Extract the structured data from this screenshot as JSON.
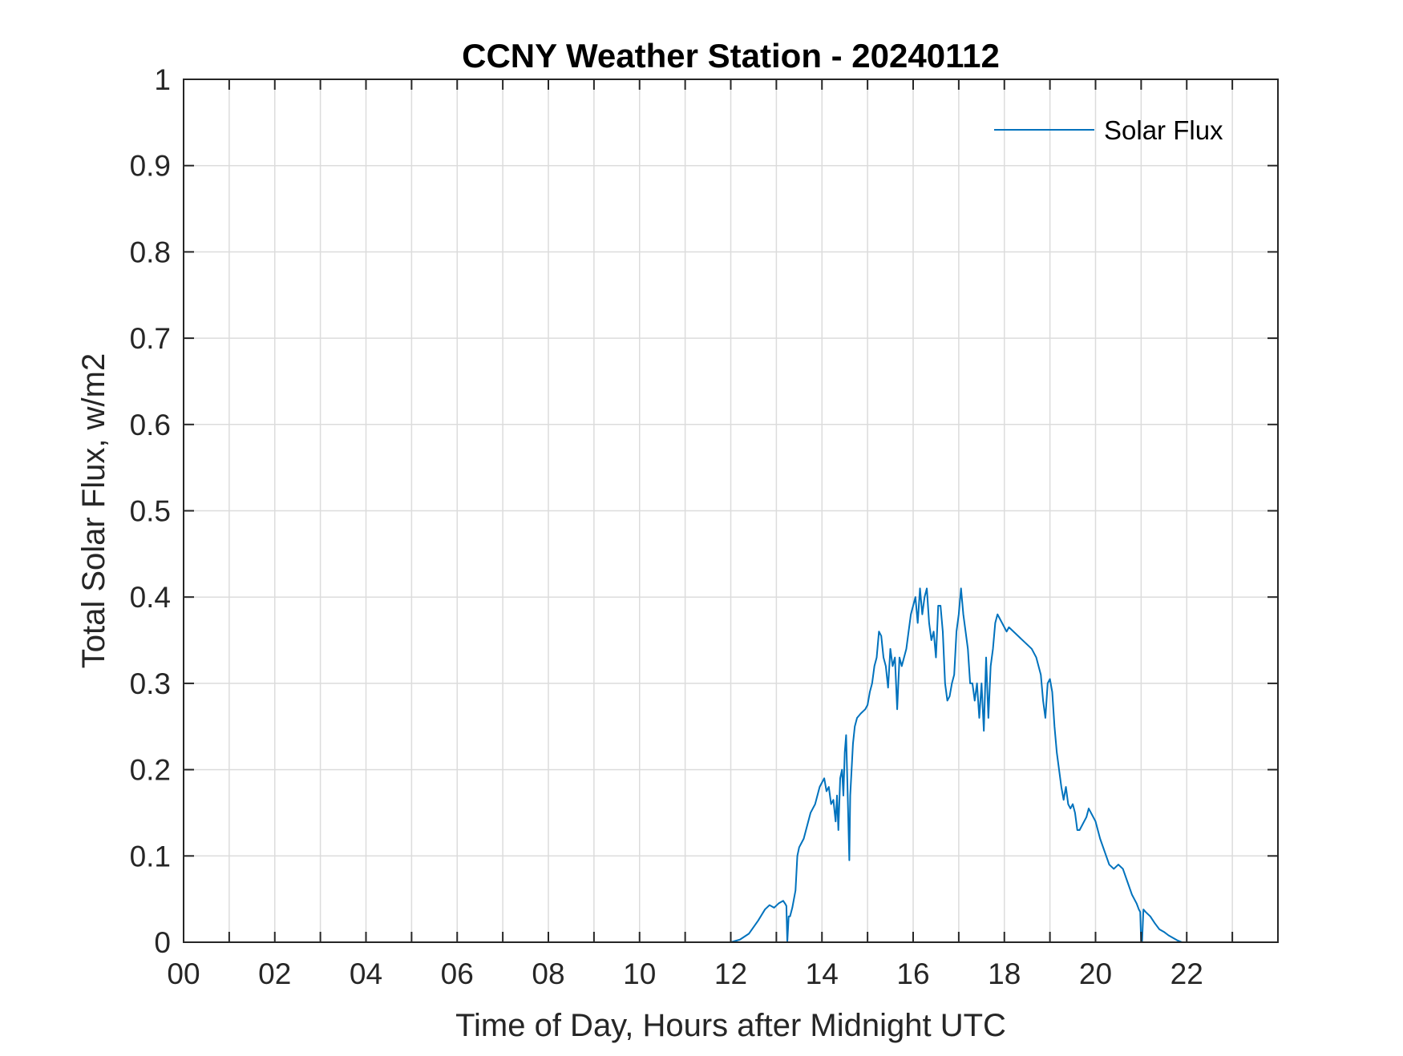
{
  "colors": {
    "series": "#0072BD",
    "axis": "#262626",
    "grid": "#dcdcdc",
    "background": "#ffffff"
  },
  "chart_data": {
    "type": "line",
    "title": "CCNY Weather Station - 20240112",
    "xlabel": "Time of Day, Hours after Midnight UTC",
    "ylabel": "Total Solar Flux, w/m2",
    "xlim": [
      0,
      24
    ],
    "ylim": [
      0,
      1
    ],
    "grid": true,
    "legend_position": "top-right",
    "x_ticks": [
      0,
      2,
      4,
      6,
      8,
      10,
      12,
      14,
      16,
      18,
      20,
      22
    ],
    "x_tick_labels": [
      "00",
      "02",
      "04",
      "06",
      "08",
      "10",
      "12",
      "14",
      "16",
      "18",
      "20",
      "22"
    ],
    "x_minor_ticks": [
      1,
      3,
      5,
      7,
      9,
      11,
      13,
      15,
      17,
      19,
      21,
      23
    ],
    "y_ticks": [
      0,
      0.1,
      0.2,
      0.3,
      0.4,
      0.5,
      0.6,
      0.7,
      0.8,
      0.9,
      1
    ],
    "y_tick_labels": [
      "0",
      "0.1",
      "0.2",
      "0.3",
      "0.4",
      "0.5",
      "0.6",
      "0.7",
      "0.8",
      "0.9",
      "1"
    ],
    "series": [
      {
        "name": "Solar Flux",
        "color": "#0072BD",
        "x": [
          0,
          12.0,
          12.2,
          12.4,
          12.6,
          12.75,
          12.85,
          12.95,
          13.05,
          13.15,
          13.2,
          13.22,
          13.24,
          13.27,
          13.3,
          13.35,
          13.42,
          13.46,
          13.5,
          13.55,
          13.6,
          13.65,
          13.7,
          13.75,
          13.8,
          13.85,
          13.9,
          13.95,
          14.0,
          14.05,
          14.1,
          14.15,
          14.2,
          14.25,
          14.3,
          14.33,
          14.36,
          14.4,
          14.44,
          14.47,
          14.5,
          14.53,
          14.56,
          14.6,
          14.62,
          14.65,
          14.68,
          14.72,
          14.77,
          14.85,
          14.95,
          15.0,
          15.05,
          15.1,
          15.15,
          15.2,
          15.25,
          15.3,
          15.35,
          15.4,
          15.45,
          15.5,
          15.55,
          15.6,
          15.65,
          15.7,
          15.75,
          15.8,
          15.85,
          15.9,
          15.95,
          16.0,
          16.05,
          16.1,
          16.15,
          16.2,
          16.25,
          16.3,
          16.35,
          16.4,
          16.45,
          16.5,
          16.55,
          16.6,
          16.65,
          16.7,
          16.75,
          16.8,
          16.85,
          16.9,
          16.95,
          17.0,
          17.05,
          17.1,
          17.15,
          17.2,
          17.25,
          17.3,
          17.35,
          17.4,
          17.45,
          17.5,
          17.55,
          17.6,
          17.65,
          17.7,
          17.75,
          17.8,
          17.85,
          17.9,
          17.95,
          18.0,
          18.05,
          18.1,
          18.2,
          18.3,
          18.4,
          18.5,
          18.6,
          18.7,
          18.8,
          18.85,
          18.9,
          18.95,
          19.0,
          19.05,
          19.1,
          19.15,
          19.2,
          19.25,
          19.3,
          19.35,
          19.4,
          19.45,
          19.5,
          19.55,
          19.6,
          19.65,
          19.7,
          19.75,
          19.8,
          19.85,
          19.9,
          20.0,
          20.1,
          20.2,
          20.3,
          20.4,
          20.5,
          20.6,
          20.7,
          20.8,
          20.9,
          20.95,
          20.98,
          21.0,
          21.02,
          21.05,
          21.1,
          21.2,
          21.3,
          21.4,
          21.5,
          21.6,
          21.7,
          21.8,
          21.9,
          22.0,
          24.0
        ],
        "y": [
          0,
          0,
          0.003,
          0.01,
          0.025,
          0.038,
          0.043,
          0.04,
          0.045,
          0.048,
          0.044,
          0.042,
          0.0,
          0.03,
          0.03,
          0.04,
          0.06,
          0.1,
          0.11,
          0.115,
          0.12,
          0.13,
          0.14,
          0.15,
          0.155,
          0.16,
          0.17,
          0.18,
          0.185,
          0.19,
          0.175,
          0.18,
          0.16,
          0.165,
          0.14,
          0.17,
          0.13,
          0.19,
          0.2,
          0.17,
          0.22,
          0.24,
          0.18,
          0.095,
          0.17,
          0.2,
          0.23,
          0.25,
          0.26,
          0.265,
          0.27,
          0.275,
          0.29,
          0.3,
          0.32,
          0.33,
          0.36,
          0.355,
          0.33,
          0.32,
          0.295,
          0.34,
          0.32,
          0.33,
          0.27,
          0.33,
          0.32,
          0.33,
          0.34,
          0.36,
          0.38,
          0.39,
          0.4,
          0.37,
          0.41,
          0.38,
          0.4,
          0.41,
          0.37,
          0.35,
          0.36,
          0.33,
          0.39,
          0.39,
          0.36,
          0.3,
          0.28,
          0.285,
          0.3,
          0.31,
          0.36,
          0.38,
          0.41,
          0.38,
          0.36,
          0.34,
          0.3,
          0.3,
          0.28,
          0.3,
          0.26,
          0.3,
          0.245,
          0.33,
          0.26,
          0.32,
          0.34,
          0.37,
          0.38,
          0.375,
          0.37,
          0.365,
          0.36,
          0.365,
          0.36,
          0.355,
          0.35,
          0.345,
          0.34,
          0.33,
          0.31,
          0.28,
          0.26,
          0.3,
          0.305,
          0.29,
          0.25,
          0.22,
          0.2,
          0.18,
          0.165,
          0.18,
          0.16,
          0.155,
          0.16,
          0.15,
          0.13,
          0.13,
          0.135,
          0.14,
          0.145,
          0.155,
          0.15,
          0.14,
          0.12,
          0.105,
          0.09,
          0.085,
          0.09,
          0.085,
          0.07,
          0.055,
          0.045,
          0.038,
          0.035,
          0.0,
          0.0,
          0.038,
          0.035,
          0.03,
          0.022,
          0.015,
          0.012,
          0.008,
          0.005,
          0.002,
          0.0,
          0,
          0
        ]
      }
    ]
  }
}
